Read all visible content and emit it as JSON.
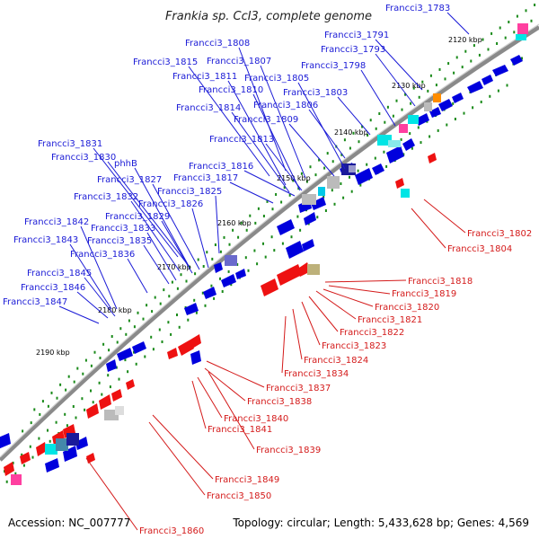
{
  "title": "Frankia sp. CcI3, complete genome",
  "accession": "Accession: NC_007777",
  "topology": "Topology: circular; Length: 5,433,628 bp; Genes: 4,569",
  "colors": {
    "forward": "#0000dd",
    "reverse": "#ee1111",
    "ring": "#8a8a8a",
    "tick": "#1a8a1a",
    "label_blue": "#1a1ad6",
    "label_red": "#d41a1a"
  },
  "kbp_labels": [
    "2120 kbp",
    "2130 kbp",
    "2140 kbp",
    "2150 kbp",
    "2160 kbp",
    "2170 kbp",
    "2180 kbp",
    "2190 kbp"
  ],
  "blue_labels": [
    "Francci3_1783",
    "Francci3_1791",
    "Francci3_1793",
    "Francci3_1798",
    "Francci3_1808",
    "Francci3_1807",
    "Francci3_1815",
    "Francci3_1805",
    "Francci3_1811",
    "Francci3_1810",
    "Francci3_1803",
    "Francci3_1806",
    "Francci3_1814",
    "Francci3_1809",
    "Francci3_1813",
    "Francci3_1831",
    "Francci3_1830",
    "phhB",
    "Francci3_1816",
    "Francci3_1827",
    "Francci3_1817",
    "Francci3_1825",
    "Francci3_1832",
    "Francci3_1826",
    "Francci3_1829",
    "Francci3_1842",
    "Francci3_1833",
    "Francci3_1843",
    "Francci3_1835",
    "Francci3_1836",
    "Francci3_1845",
    "Francci3_1846",
    "Francci3_1847"
  ],
  "red_labels": [
    "Francci3_1802",
    "Francci3_1804",
    "Francci3_1818",
    "Francci3_1819",
    "Francci3_1820",
    "Francci3_1821",
    "Francci3_1822",
    "Francci3_1823",
    "Francci3_1824",
    "Francci3_1834",
    "Francci3_1837",
    "Francci3_1838",
    "Francci3_1840",
    "Francci3_1841",
    "Francci3_1839",
    "Francci3_1849",
    "Francci3_1850",
    "Francci3_1860"
  ]
}
